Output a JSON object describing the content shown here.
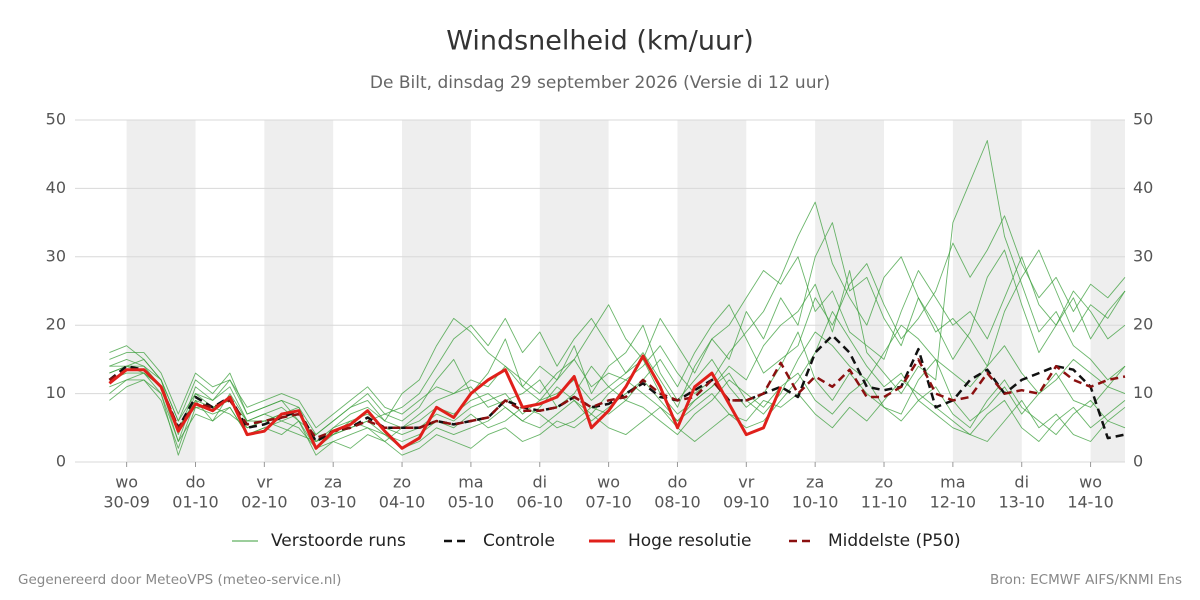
{
  "chart_data": {
    "type": "line",
    "title": "Windsnelheid (km/uur)",
    "subtitle": "De Bilt, dinsdag 29 september 2026 (Versie di 12 uur)",
    "footer_left": "Gegenereerd door MeteoVPS (meteo-service.nl)",
    "footer_right": "Bron: ECMWF AIFS/KNMI Ens",
    "xlim": [
      -18,
      348
    ],
    "xticks": [
      {
        "value": 0,
        "label": "wo",
        "date": "30-09"
      },
      {
        "value": 24,
        "label": "do",
        "date": "01-10"
      },
      {
        "value": 48,
        "label": "vr",
        "date": "02-10"
      },
      {
        "value": 72,
        "label": "za",
        "date": "03-10"
      },
      {
        "value": 96,
        "label": "zo",
        "date": "04-10"
      },
      {
        "value": 120,
        "label": "ma",
        "date": "05-10"
      },
      {
        "value": 144,
        "label": "di",
        "date": "06-10"
      },
      {
        "value": 168,
        "label": "wo",
        "date": "07-10"
      },
      {
        "value": 192,
        "label": "do",
        "date": "08-10"
      },
      {
        "value": 216,
        "label": "vr",
        "date": "09-10"
      },
      {
        "value": 240,
        "label": "za",
        "date": "10-10"
      },
      {
        "value": 264,
        "label": "zo",
        "date": "11-10"
      },
      {
        "value": 288,
        "label": "ma",
        "date": "12-10"
      },
      {
        "value": 312,
        "label": "di",
        "date": "13-10"
      },
      {
        "value": 336,
        "label": "wo",
        "date": "14-10"
      }
    ],
    "ylim": [
      0,
      50
    ],
    "yticks": [
      0,
      10,
      20,
      30,
      40,
      50
    ],
    "grid": true,
    "legend": "bottom",
    "x": [
      -6,
      0,
      6,
      12,
      18,
      24,
      30,
      36,
      42,
      48,
      54,
      60,
      66,
      72,
      78,
      84,
      90,
      96,
      102,
      108,
      114,
      120,
      126,
      132,
      138,
      144,
      150,
      156,
      162,
      168,
      174,
      180,
      186,
      192,
      198,
      204,
      210,
      216,
      222,
      228,
      234,
      240,
      246,
      252,
      258,
      264,
      270,
      276,
      282,
      288,
      294,
      300,
      306,
      312,
      318,
      324,
      330,
      336,
      342,
      348
    ],
    "ensemble": {
      "name": "Verstoorde runs",
      "color": "#3a9e3a",
      "members": [
        [
          14,
          15,
          14,
          11,
          3,
          10,
          8,
          9,
          5,
          6,
          7,
          8,
          2,
          5,
          6,
          7,
          5,
          4,
          5,
          7,
          6,
          8,
          9,
          10,
          7,
          9,
          10,
          12,
          9,
          11,
          13,
          16,
          12,
          8,
          14,
          18,
          20,
          24,
          28,
          26,
          30,
          22,
          25,
          19,
          17,
          15,
          22,
          28,
          24,
          20,
          22,
          18,
          24,
          30,
          23,
          20,
          25,
          22,
          18,
          20
        ],
        [
          16,
          17,
          15,
          12,
          6,
          12,
          10,
          13,
          7,
          8,
          9,
          6,
          4,
          6,
          8,
          10,
          7,
          6,
          8,
          12,
          15,
          10,
          13,
          18,
          11,
          14,
          12,
          17,
          10,
          14,
          16,
          20,
          13,
          9,
          12,
          15,
          11,
          8,
          10,
          14,
          19,
          12,
          9,
          13,
          10,
          8,
          7,
          12,
          15,
          9,
          6,
          8,
          11,
          7,
          10,
          13,
          9,
          8,
          11,
          10
        ],
        [
          12,
          13,
          13,
          10,
          1,
          8,
          7,
          8,
          4,
          5,
          6,
          7,
          3,
          4,
          5,
          6,
          4,
          2,
          3,
          5,
          4,
          5,
          6,
          8,
          6,
          5,
          7,
          9,
          6,
          8,
          10,
          12,
          9,
          6,
          8,
          10,
          7,
          5,
          6,
          9,
          12,
          16,
          22,
          18,
          14,
          11,
          13,
          9,
          7,
          5,
          4,
          3,
          6,
          9,
          5,
          7,
          4,
          3,
          6,
          5
        ],
        [
          10,
          12,
          12,
          9,
          2,
          9,
          6,
          10,
          6,
          7,
          8,
          6,
          1,
          3,
          4,
          5,
          3,
          5,
          7,
          9,
          10,
          11,
          8,
          9,
          10,
          12,
          8,
          10,
          14,
          11,
          9,
          12,
          15,
          11,
          16,
          20,
          23,
          18,
          13,
          15,
          17,
          24,
          20,
          26,
          29,
          23,
          18,
          21,
          25,
          32,
          27,
          31,
          36,
          29,
          24,
          27,
          22,
          26,
          24,
          27
        ],
        [
          13,
          14,
          15,
          12,
          4,
          11,
          9,
          11,
          6,
          7,
          6,
          5,
          2,
          4,
          5,
          6,
          7,
          8,
          10,
          14,
          18,
          20,
          17,
          21,
          16,
          19,
          14,
          18,
          21,
          17,
          13,
          15,
          10,
          7,
          9,
          11,
          14,
          12,
          17,
          20,
          22,
          26,
          19,
          28,
          16,
          13,
          10,
          14,
          12,
          35,
          41,
          47,
          33,
          26,
          19,
          22,
          17,
          15,
          12,
          14
        ],
        [
          11,
          12,
          13,
          11,
          5,
          8,
          8,
          7,
          5,
          6,
          5,
          4,
          3,
          4,
          6,
          5,
          4,
          3,
          4,
          6,
          5,
          7,
          5,
          6,
          8,
          7,
          5,
          6,
          8,
          7,
          9,
          8,
          6,
          4,
          7,
          9,
          12,
          10,
          8,
          11,
          13,
          9,
          7,
          10,
          12,
          8,
          6,
          9,
          11,
          7,
          5,
          9,
          12,
          8,
          6,
          4,
          7,
          9,
          6,
          8
        ],
        [
          15,
          16,
          16,
          13,
          7,
          13,
          11,
          12,
          8,
          9,
          10,
          9,
          5,
          7,
          9,
          11,
          8,
          7,
          9,
          11,
          10,
          12,
          11,
          14,
          12,
          10,
          13,
          15,
          11,
          13,
          12,
          14,
          17,
          13,
          10,
          12,
          16,
          19,
          22,
          27,
          33,
          38,
          29,
          24,
          20,
          27,
          30,
          24,
          19,
          21,
          18,
          14,
          22,
          27,
          31,
          25,
          19,
          23,
          21,
          25
        ],
        [
          9,
          11,
          12,
          10,
          3,
          7,
          6,
          8,
          4,
          5,
          4,
          6,
          2,
          3,
          2,
          4,
          3,
          1,
          2,
          4,
          3,
          2,
          4,
          5,
          3,
          4,
          6,
          5,
          7,
          5,
          4,
          6,
          8,
          5,
          3,
          5,
          7,
          6,
          9,
          8,
          10,
          7,
          5,
          8,
          6,
          9,
          12,
          10,
          8,
          6,
          4,
          7,
          9,
          5,
          3,
          6,
          8,
          5,
          7,
          9
        ],
        [
          14,
          14,
          14,
          12,
          6,
          10,
          9,
          12,
          7,
          8,
          9,
          8,
          4,
          6,
          8,
          9,
          6,
          10,
          12,
          17,
          21,
          19,
          16,
          14,
          11,
          9,
          12,
          15,
          19,
          23,
          18,
          15,
          21,
          17,
          13,
          18,
          15,
          22,
          18,
          24,
          20,
          30,
          35,
          25,
          27,
          21,
          17,
          24,
          20,
          15,
          19,
          27,
          31,
          23,
          16,
          20,
          24,
          18,
          22,
          25
        ],
        [
          13,
          14,
          13,
          11,
          5,
          9,
          8,
          9,
          6,
          6,
          7,
          7,
          3,
          5,
          7,
          8,
          6,
          5,
          6,
          8,
          7,
          9,
          10,
          8,
          6,
          8,
          11,
          9,
          7,
          10,
          12,
          10,
          8,
          6,
          9,
          11,
          13,
          9,
          7,
          10,
          15,
          19,
          17,
          14,
          12,
          16,
          20,
          18,
          15,
          13,
          11,
          14,
          17,
          13,
          10,
          12,
          15,
          13,
          11,
          14
        ]
      ]
    },
    "series": [
      {
        "name": "Controle",
        "color": "#111111",
        "line_style": "dashed",
        "values": [
          12,
          14,
          13.5,
          11,
          5,
          9.5,
          8,
          9.5,
          5,
          5.5,
          6.5,
          7.5,
          3,
          4.5,
          5,
          6.5,
          5,
          5,
          5,
          6,
          5.5,
          6,
          6.5,
          9,
          8,
          7.5,
          8,
          9.5,
          8,
          8.5,
          10,
          11.5,
          9.5,
          9,
          10.5,
          12,
          9,
          9,
          10,
          11,
          9.5,
          16,
          18.5,
          16,
          11,
          10.5,
          11,
          16.5,
          8,
          9,
          12,
          13.5,
          10,
          12,
          13,
          14,
          13.5,
          11,
          3.5,
          4
        ]
      },
      {
        "name": "Hoge resolutie",
        "color": "#e0201b",
        "line_style": "solid",
        "values": [
          11.5,
          13.5,
          13.5,
          11,
          4.5,
          8.5,
          7.5,
          9.5,
          4,
          4.5,
          7,
          7.5,
          2,
          4.5,
          5.5,
          7.5,
          4.5,
          2,
          3.5,
          8,
          6.5,
          10,
          12,
          13.5,
          8,
          8.5,
          9.5,
          12.5,
          5,
          7.5,
          11,
          15.5,
          11,
          5,
          11,
          13,
          8.5,
          4,
          5,
          11,
          null,
          null,
          null,
          null,
          null,
          null,
          null,
          null,
          null,
          null,
          null,
          null,
          null,
          null,
          null,
          null,
          null,
          null,
          null,
          null
        ]
      },
      {
        "name": "Middelste (P50)",
        "color": "#8b1010",
        "line_style": "dashed",
        "values": [
          12,
          13.5,
          13.5,
          11,
          5,
          8.5,
          8,
          9,
          5.5,
          6,
          6.5,
          7,
          3.5,
          4.5,
          5,
          6,
          5,
          5,
          5,
          6,
          5.5,
          6,
          6.5,
          9,
          7.5,
          7.5,
          8,
          9.5,
          8,
          9,
          9.5,
          12,
          10,
          9,
          9.5,
          12,
          9,
          9,
          10,
          14.5,
          10,
          12.5,
          11,
          13.5,
          9.5,
          9.5,
          11,
          15,
          10,
          9,
          9.5,
          13,
          10,
          10.5,
          10,
          14,
          12,
          11,
          12,
          12.5
        ]
      }
    ]
  }
}
